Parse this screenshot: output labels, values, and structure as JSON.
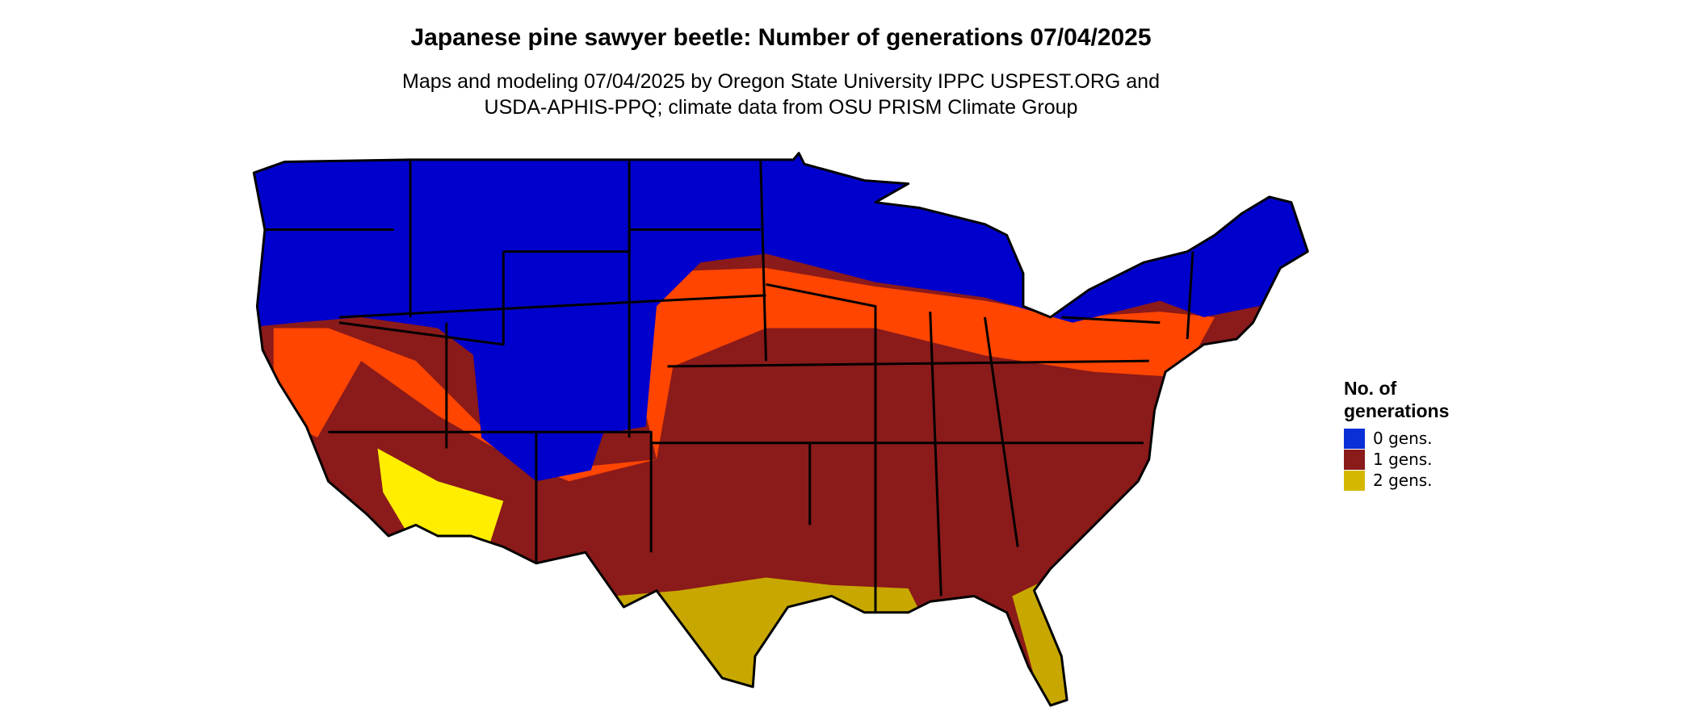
{
  "header": {
    "title": "Japanese pine sawyer beetle: Number of generations 07/04/2025",
    "subtitle": [
      "Maps and modeling 07/04/2025 by Oregon State University IPPC USPEST.ORG and",
      "USDA-APHIS-PPQ; climate data from OSU PRISM Climate Group"
    ]
  },
  "legend": {
    "title": [
      "No. of",
      "generations"
    ],
    "items": [
      {
        "label": "0 gens.",
        "color": "#0a2fd6"
      },
      {
        "label": "1 gens.",
        "color": "#8b1a1a"
      },
      {
        "label": "2 gens.",
        "color": "#d4b800"
      }
    ]
  }
}
